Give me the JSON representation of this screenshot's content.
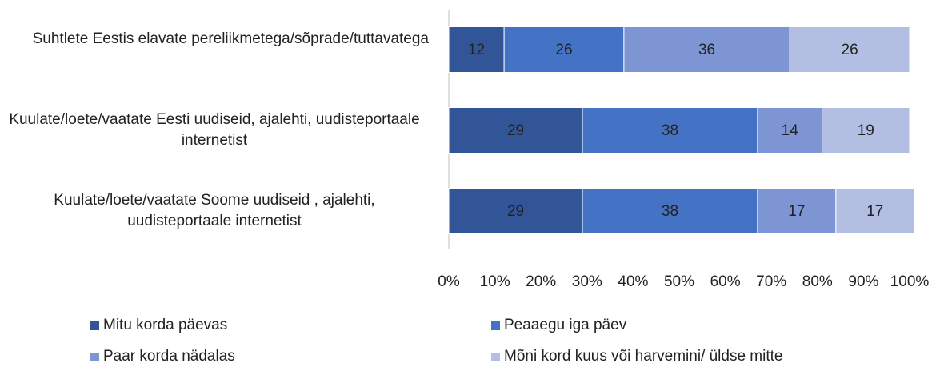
{
  "chart_data": {
    "type": "stacked_bar_horizontal",
    "categories": [
      "Suhtlete Eestis elavate pereliikmetega/sõprade/tuttavatega",
      "Kuulate/loete/vaatate Eesti uudiseid, ajalehti, uudisteportaale internetist",
      "Kuulate/loete/vaatate Soome uudiseid , ajalehti, uudisteportaale internetist"
    ],
    "series": [
      {
        "name": "Mitu korda päevas",
        "color": "#325597",
        "values": [
          12,
          29,
          29
        ]
      },
      {
        "name": "Peaaegu iga päev",
        "color": "#4472c4",
        "values": [
          26,
          38,
          38
        ]
      },
      {
        "name": "Paar korda nädalas",
        "color": "#7e95d3",
        "values": [
          36,
          14,
          17
        ]
      },
      {
        "name": "Mõni kord kuus või harvemini/ üldse mitte",
        "color": "#b3bfe2",
        "values": [
          26,
          19,
          17
        ]
      }
    ],
    "xlim": [
      0,
      100
    ],
    "xticks": [
      {
        "value": 0,
        "label": "0%"
      },
      {
        "value": 10,
        "label": "10%"
      },
      {
        "value": 20,
        "label": "20%"
      },
      {
        "value": 30,
        "label": "30%"
      },
      {
        "value": 40,
        "label": "40%"
      },
      {
        "value": 50,
        "label": "50%"
      },
      {
        "value": 60,
        "label": "60%"
      },
      {
        "value": 70,
        "label": "70%"
      },
      {
        "value": 80,
        "label": "80%"
      },
      {
        "value": 90,
        "label": "90%"
      },
      {
        "value": 100,
        "label": "100%"
      }
    ],
    "legend": "bottom"
  }
}
